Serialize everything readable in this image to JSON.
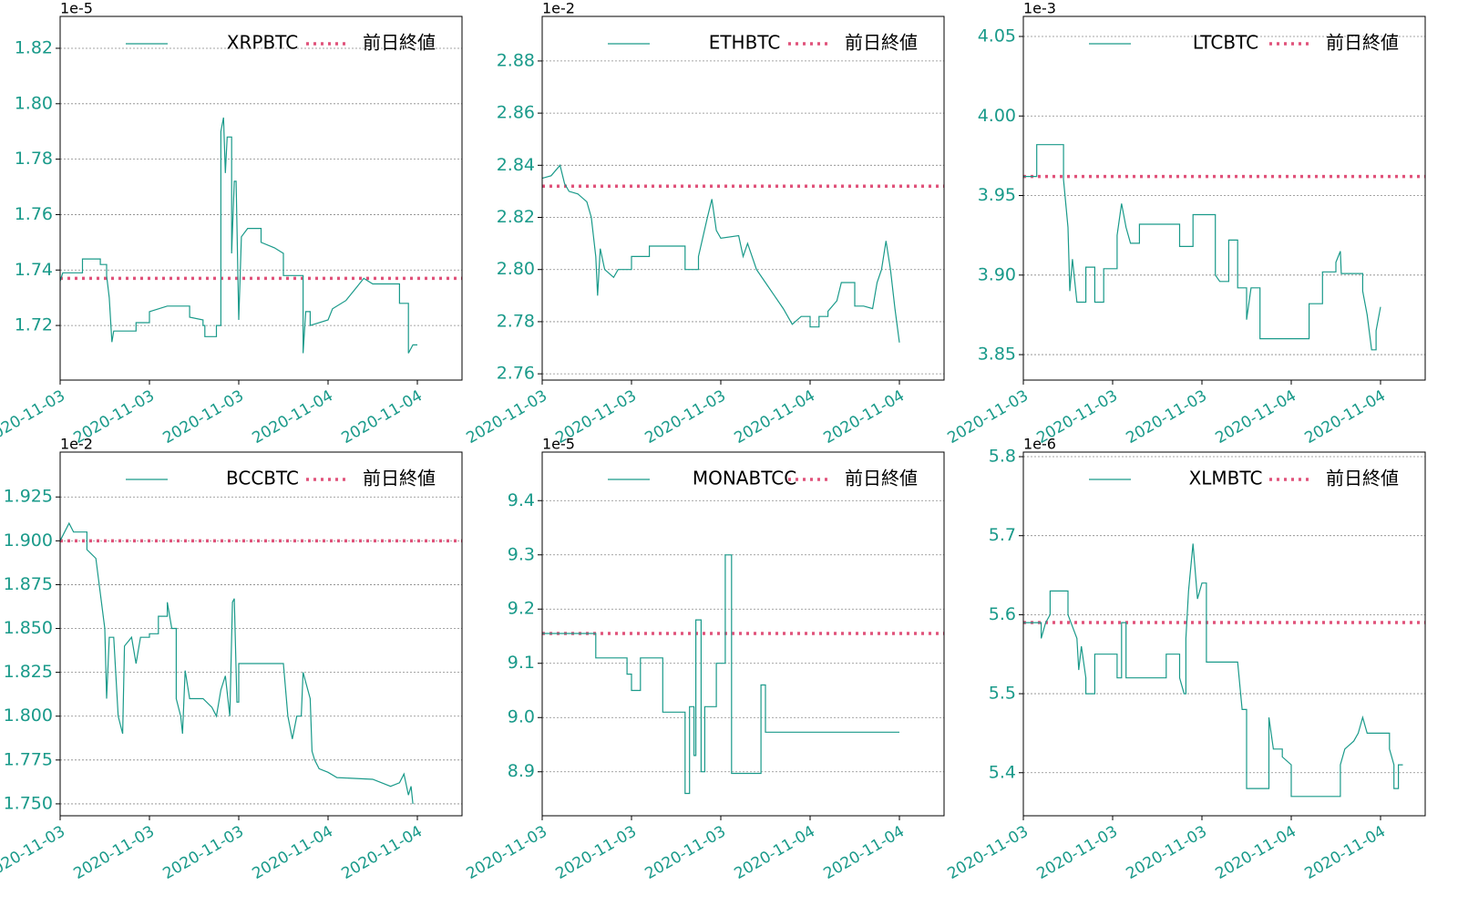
{
  "chart_data": [
    {
      "type": "line",
      "offset_text": "1e-5",
      "xlim": [
        0,
        4.5
      ],
      "ylim": [
        1.7003,
        1.8315
      ],
      "xticks": [
        {
          "value": 0,
          "label": "2020-11-03"
        },
        {
          "value": 1,
          "label": "2020-11-03"
        },
        {
          "value": 2,
          "label": "2020-11-03"
        },
        {
          "value": 3,
          "label": "2020-11-04"
        },
        {
          "value": 4,
          "label": "2020-11-04"
        }
      ],
      "yticks": [
        1.72,
        1.74,
        1.76,
        1.78,
        {
          "value": 1.8,
          "label": "1.80"
        },
        1.82
      ],
      "grid": true,
      "x": [
        0,
        0.03,
        0.25,
        0.25,
        0.45,
        0.45,
        0.52,
        0.52,
        0.55,
        0.58,
        0.6,
        0.85,
        0.85,
        1.0,
        1.0,
        1.2,
        1.45,
        1.45,
        1.6,
        1.6,
        1.62,
        1.62,
        1.75,
        1.75,
        1.8,
        1.8,
        1.83,
        1.85,
        1.87,
        1.92,
        1.92,
        1.95,
        1.97,
        2.0,
        2.03,
        2.1,
        2.25,
        2.25,
        2.4,
        2.5,
        2.5,
        2.72,
        2.72,
        2.75,
        2.8,
        2.8,
        3.0,
        3.05,
        3.2,
        3.3,
        3.4,
        3.5,
        3.8,
        3.8,
        3.9,
        3.9,
        3.95,
        4.0
      ],
      "series": [
        {
          "name": "XRPBTC",
          "color": "#1a9a8a",
          "values": [
            1.736,
            1.739,
            1.739,
            1.744,
            1.744,
            1.742,
            1.742,
            1.738,
            1.73,
            1.714,
            1.718,
            1.718,
            1.721,
            1.721,
            1.725,
            1.727,
            1.727,
            1.723,
            1.722,
            1.72,
            1.72,
            1.716,
            1.716,
            1.72,
            1.72,
            1.79,
            1.795,
            1.775,
            1.788,
            1.788,
            1.746,
            1.772,
            1.772,
            1.722,
            1.752,
            1.755,
            1.755,
            1.75,
            1.748,
            1.746,
            1.738,
            1.738,
            1.71,
            1.725,
            1.725,
            1.72,
            1.722,
            1.726,
            1.729,
            1.733,
            1.737,
            1.735,
            1.735,
            1.728,
            1.728,
            1.71,
            1.713,
            1.713
          ]
        }
      ],
      "reference": {
        "name": "前日終値",
        "value": 1.737,
        "color": "#e0527a"
      }
    },
    {
      "type": "line",
      "offset_text": "1e-2",
      "xlim": [
        0,
        4.5
      ],
      "ylim": [
        2.7576,
        2.8971
      ],
      "xticks": [
        {
          "value": 0,
          "label": "2020-11-03"
        },
        {
          "value": 1,
          "label": "2020-11-03"
        },
        {
          "value": 2,
          "label": "2020-11-03"
        },
        {
          "value": 3,
          "label": "2020-11-04"
        },
        {
          "value": 4,
          "label": "2020-11-04"
        }
      ],
      "yticks": [
        2.76,
        2.78,
        {
          "value": 2.8,
          "label": "2.80"
        },
        2.82,
        2.84,
        2.86,
        2.88
      ],
      "grid": true,
      "x": [
        0,
        0.1,
        0.2,
        0.25,
        0.3,
        0.4,
        0.5,
        0.55,
        0.6,
        0.62,
        0.65,
        0.7,
        0.8,
        0.85,
        1.0,
        1.0,
        1.2,
        1.2,
        1.6,
        1.6,
        1.75,
        1.75,
        1.85,
        1.9,
        1.95,
        2.0,
        2.2,
        2.25,
        2.3,
        2.4,
        2.5,
        2.6,
        2.7,
        2.8,
        2.9,
        3.0,
        3.0,
        3.1,
        3.1,
        3.2,
        3.2,
        3.3,
        3.35,
        3.5,
        3.5,
        3.6,
        3.7,
        3.75,
        3.8,
        3.85,
        3.9,
        3.95,
        4.0
      ],
      "series": [
        {
          "name": "ETHBTC",
          "color": "#1a9a8a",
          "values": [
            2.835,
            2.836,
            2.84,
            2.833,
            2.83,
            2.829,
            2.826,
            2.82,
            2.805,
            2.79,
            2.808,
            2.8,
            2.797,
            2.8,
            2.8,
            2.805,
            2.805,
            2.809,
            2.809,
            2.8,
            2.8,
            2.805,
            2.82,
            2.827,
            2.815,
            2.812,
            2.813,
            2.805,
            2.81,
            2.8,
            2.795,
            2.79,
            2.785,
            2.779,
            2.782,
            2.782,
            2.778,
            2.778,
            2.782,
            2.782,
            2.784,
            2.788,
            2.795,
            2.795,
            2.786,
            2.786,
            2.785,
            2.795,
            2.8,
            2.811,
            2.8,
            2.785,
            2.772
          ]
        }
      ],
      "reference": {
        "name": "前日終値",
        "value": 2.832,
        "color": "#e0527a"
      }
    },
    {
      "type": "line",
      "offset_text": "1e-3",
      "xlim": [
        0,
        4.5
      ],
      "ylim": [
        3.834,
        4.0626
      ],
      "xticks": [
        {
          "value": 0,
          "label": "2020-11-03"
        },
        {
          "value": 1,
          "label": "2020-11-03"
        },
        {
          "value": 2,
          "label": "2020-11-03"
        },
        {
          "value": 3,
          "label": "2020-11-04"
        },
        {
          "value": 4,
          "label": "2020-11-04"
        }
      ],
      "yticks": [
        3.85,
        {
          "value": 3.9,
          "label": "3.90"
        },
        3.95,
        {
          "value": 4,
          "label": "4.00"
        },
        4.05
      ],
      "grid": true,
      "x": [
        0,
        0.15,
        0.15,
        0.45,
        0.45,
        0.5,
        0.52,
        0.55,
        0.6,
        0.7,
        0.7,
        0.8,
        0.8,
        0.9,
        0.9,
        1.05,
        1.05,
        1.1,
        1.15,
        1.2,
        1.3,
        1.3,
        1.75,
        1.75,
        1.9,
        1.9,
        2.15,
        2.15,
        2.2,
        2.3,
        2.3,
        2.4,
        2.4,
        2.5,
        2.5,
        2.55,
        2.65,
        2.65,
        3.2,
        3.2,
        3.35,
        3.35,
        3.5,
        3.5,
        3.55,
        3.56,
        3.8,
        3.8,
        3.85,
        3.9,
        3.95,
        3.95,
        4.0
      ],
      "series": [
        {
          "name": "LTCBTC",
          "color": "#1a9a8a",
          "values": [
            3.962,
            3.962,
            3.982,
            3.982,
            3.96,
            3.93,
            3.89,
            3.91,
            3.883,
            3.883,
            3.905,
            3.905,
            3.883,
            3.883,
            3.904,
            3.904,
            3.925,
            3.945,
            3.93,
            3.92,
            3.92,
            3.932,
            3.932,
            3.918,
            3.918,
            3.938,
            3.938,
            3.9,
            3.896,
            3.896,
            3.922,
            3.922,
            3.892,
            3.892,
            3.872,
            3.892,
            3.892,
            3.86,
            3.86,
            3.882,
            3.882,
            3.902,
            3.902,
            3.908,
            3.915,
            3.901,
            3.901,
            3.89,
            3.875,
            3.853,
            3.853,
            3.865,
            3.88
          ]
        }
      ],
      "reference": {
        "name": "前日終値",
        "value": 3.962,
        "color": "#e0527a"
      }
    },
    {
      "type": "line",
      "offset_text": "1e-2",
      "xlim": [
        0,
        4.5
      ],
      "ylim": [
        1.7432,
        1.9506
      ],
      "xticks": [
        {
          "value": 0,
          "label": "2020-11-03"
        },
        {
          "value": 1,
          "label": "2020-11-03"
        },
        {
          "value": 2,
          "label": "2020-11-03"
        },
        {
          "value": 3,
          "label": "2020-11-04"
        },
        {
          "value": 4,
          "label": "2020-11-04"
        }
      ],
      "yticks": [
        {
          "value": 1.75,
          "label": "1.750"
        },
        1.775,
        {
          "value": 1.8,
          "label": "1.800"
        },
        1.825,
        {
          "value": 1.85,
          "label": "1.850"
        },
        1.875,
        {
          "value": 1.9,
          "label": "1.900"
        },
        1.925
      ],
      "grid": true,
      "x": [
        0,
        0.05,
        0.1,
        0.15,
        0.3,
        0.3,
        0.4,
        0.45,
        0.5,
        0.52,
        0.55,
        0.6,
        0.65,
        0.7,
        0.72,
        0.8,
        0.85,
        0.9,
        1.0,
        1.0,
        1.1,
        1.1,
        1.2,
        1.2,
        1.25,
        1.3,
        1.3,
        1.35,
        1.37,
        1.4,
        1.45,
        1.6,
        1.7,
        1.75,
        1.8,
        1.85,
        1.9,
        1.93,
        1.95,
        1.98,
        2.0,
        2.0,
        2.5,
        2.55,
        2.6,
        2.65,
        2.7,
        2.72,
        2.8,
        2.82,
        2.85,
        2.9,
        3.0,
        3.1,
        3.5,
        3.6,
        3.7,
        3.8,
        3.85,
        3.9,
        3.93,
        3.95
      ],
      "series": [
        {
          "name": "BCCBTC",
          "color": "#1a9a8a",
          "values": [
            1.9,
            1.905,
            1.91,
            1.905,
            1.905,
            1.895,
            1.89,
            1.87,
            1.85,
            1.81,
            1.845,
            1.845,
            1.8,
            1.79,
            1.84,
            1.845,
            1.83,
            1.845,
            1.845,
            1.847,
            1.847,
            1.857,
            1.857,
            1.865,
            1.85,
            1.85,
            1.81,
            1.8,
            1.79,
            1.826,
            1.81,
            1.81,
            1.805,
            1.8,
            1.815,
            1.823,
            1.8,
            1.865,
            1.867,
            1.808,
            1.808,
            1.83,
            1.83,
            1.8,
            1.787,
            1.8,
            1.8,
            1.825,
            1.81,
            1.78,
            1.775,
            1.77,
            1.768,
            1.765,
            1.764,
            1.762,
            1.76,
            1.762,
            1.767,
            1.755,
            1.76,
            1.75
          ]
        }
      ],
      "reference": {
        "name": "前日終値",
        "value": 1.9,
        "color": "#e0527a"
      }
    },
    {
      "type": "line",
      "offset_text": "1e-5",
      "xlim": [
        0,
        4.5
      ],
      "ylim": [
        8.8189,
        9.4895
      ],
      "xticks": [
        {
          "value": 0,
          "label": "2020-11-03"
        },
        {
          "value": 1,
          "label": "2020-11-03"
        },
        {
          "value": 2,
          "label": "2020-11-03"
        },
        {
          "value": 3,
          "label": "2020-11-04"
        },
        {
          "value": 4,
          "label": "2020-11-04"
        }
      ],
      "yticks": [
        8.9,
        {
          "value": 9,
          "label": "9.0"
        },
        9.1,
        9.2,
        9.3,
        9.4
      ],
      "grid": true,
      "x": [
        0,
        0.6,
        0.6,
        0.95,
        0.95,
        1.0,
        1.0,
        1.1,
        1.1,
        1.35,
        1.35,
        1.6,
        1.6,
        1.65,
        1.65,
        1.7,
        1.7,
        1.72,
        1.72,
        1.78,
        1.78,
        1.82,
        1.82,
        1.95,
        1.95,
        2.05,
        2.05,
        2.12,
        2.12,
        2.45,
        2.45,
        2.5,
        2.5,
        4.0
      ],
      "series": [
        {
          "name": "MONABTCC",
          "color": "#1a9a8a",
          "values": [
            9.155,
            9.155,
            9.11,
            9.11,
            9.08,
            9.08,
            9.05,
            9.05,
            9.11,
            9.11,
            9.01,
            9.01,
            8.86,
            8.86,
            9.02,
            9.02,
            8.93,
            8.93,
            9.18,
            9.18,
            8.9,
            8.9,
            9.02,
            9.02,
            9.1,
            9.1,
            9.3,
            9.3,
            8.897,
            8.897,
            9.06,
            9.06,
            8.973,
            8.973
          ]
        }
      ],
      "reference": {
        "name": "前日終値",
        "value": 9.155,
        "color": "#e0527a"
      }
    },
    {
      "type": "line",
      "offset_text": "1e-6",
      "xlim": [
        0,
        4.5
      ],
      "ylim": [
        5.3455,
        5.8058
      ],
      "xticks": [
        {
          "value": 0,
          "label": "2020-11-03"
        },
        {
          "value": 1,
          "label": "2020-11-03"
        },
        {
          "value": 2,
          "label": "2020-11-03"
        },
        {
          "value": 3,
          "label": "2020-11-04"
        },
        {
          "value": 4,
          "label": "2020-11-04"
        }
      ],
      "yticks": [
        5.4,
        5.5,
        5.6,
        5.7,
        5.8
      ],
      "grid": true,
      "x": [
        0,
        0.2,
        0.2,
        0.25,
        0.3,
        0.3,
        0.5,
        0.5,
        0.6,
        0.62,
        0.65,
        0.7,
        0.7,
        0.8,
        0.8,
        1.05,
        1.05,
        1.1,
        1.1,
        1.15,
        1.15,
        1.6,
        1.6,
        1.75,
        1.75,
        1.8,
        1.82,
        1.82,
        1.85,
        1.9,
        1.95,
        2.0,
        2.05,
        2.05,
        2.4,
        2.45,
        2.5,
        2.5,
        2.75,
        2.75,
        2.8,
        2.9,
        2.9,
        3.0,
        3.0,
        3.55,
        3.55,
        3.6,
        3.7,
        3.75,
        3.8,
        3.85,
        4.0,
        4.1,
        4.1,
        4.15,
        4.15,
        4.2,
        4.2,
        4.25
      ],
      "series": [
        {
          "name": "XLMBTC",
          "color": "#1a9a8a",
          "values": [
            5.59,
            5.59,
            5.57,
            5.59,
            5.6,
            5.63,
            5.63,
            5.6,
            5.57,
            5.53,
            5.56,
            5.52,
            5.5,
            5.5,
            5.55,
            5.55,
            5.52,
            5.52,
            5.59,
            5.59,
            5.52,
            5.52,
            5.55,
            5.55,
            5.52,
            5.5,
            5.5,
            5.57,
            5.63,
            5.69,
            5.62,
            5.64,
            5.64,
            5.54,
            5.54,
            5.48,
            5.48,
            5.38,
            5.38,
            5.47,
            5.43,
            5.43,
            5.42,
            5.41,
            5.37,
            5.37,
            5.41,
            5.43,
            5.44,
            5.45,
            5.47,
            5.45,
            5.45,
            5.45,
            5.43,
            5.41,
            5.38,
            5.38,
            5.41,
            5.41
          ]
        }
      ],
      "reference": {
        "name": "前日終値",
        "value": 5.59,
        "color": "#e0527a"
      }
    }
  ]
}
